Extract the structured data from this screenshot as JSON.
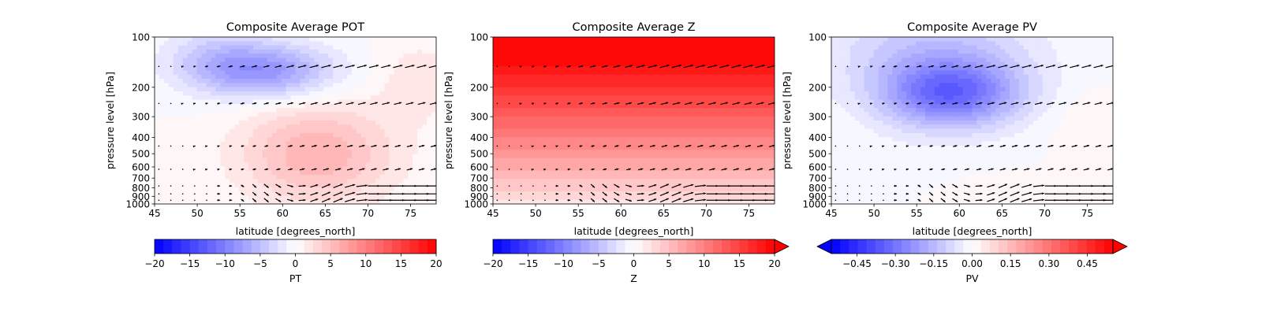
{
  "chart_data": [
    {
      "type": "heatmap",
      "title": "Composite Average POT",
      "xlabel": "latitude [degrees_north]",
      "ylabel": "pressure level [hPa]",
      "xlim": [
        45,
        78
      ],
      "ylim": [
        1000,
        100
      ],
      "yscale": "log",
      "xticks": [
        45,
        50,
        55,
        60,
        65,
        70,
        75
      ],
      "yticks": [
        100,
        200,
        300,
        400,
        500,
        600,
        700,
        800,
        900,
        1000
      ],
      "colorbar": {
        "label": "PT",
        "min": -20,
        "max": 20,
        "ticks": [
          "−20",
          "−15",
          "−10",
          "−5",
          "0",
          "5",
          "10",
          "15",
          "20"
        ],
        "extend": "neither",
        "cmap": "bwr"
      },
      "features": [
        {
          "kind": "min",
          "lat": 58,
          "p": 160,
          "value": -8
        },
        {
          "kind": "max",
          "lat": 64,
          "p": 500,
          "value": 6
        }
      ],
      "overlay": "wind vectors (quiver)",
      "grid": false
    },
    {
      "type": "heatmap",
      "title": "Composite Average Z",
      "xlabel": "latitude [degrees_north]",
      "ylabel": "pressure level [hPa]",
      "xlim": [
        45,
        78
      ],
      "ylim": [
        1000,
        100
      ],
      "yscale": "log",
      "xticks": [
        45,
        50,
        55,
        60,
        65,
        70,
        75
      ],
      "yticks": [
        100,
        200,
        300,
        400,
        500,
        600,
        700,
        800,
        900,
        1000
      ],
      "colorbar": {
        "label": "Z",
        "min": -20,
        "max": 20,
        "ticks": [
          "−20",
          "−15",
          "−10",
          "−5",
          "0",
          "5",
          "10",
          "15",
          "20"
        ],
        "extend": "max",
        "cmap": "bwr"
      },
      "features": [
        {
          "kind": "gradient",
          "description": "values increase with height",
          "value_at_1000": 0,
          "value_at_100": 20
        }
      ],
      "overlay": "wind vectors (quiver)",
      "grid": false
    },
    {
      "type": "heatmap",
      "title": "Composite Average PV",
      "xlabel": "latitude [degrees_north]",
      "ylabel": "pressure level [hPa]",
      "xlim": [
        45,
        78
      ],
      "ylim": [
        1000,
        100
      ],
      "yscale": "log",
      "xticks": [
        45,
        50,
        55,
        60,
        65,
        70,
        75
      ],
      "yticks": [
        100,
        200,
        300,
        400,
        500,
        600,
        700,
        800,
        900,
        1000
      ],
      "colorbar": {
        "label": "PV",
        "min": -0.55,
        "max": 0.55,
        "ticks": [
          "−0.45",
          "−0.30",
          "−0.15",
          "0.00",
          "0.15",
          "0.30",
          "0.45"
        ],
        "extend": "both",
        "cmap": "bwr"
      },
      "features": [
        {
          "kind": "min",
          "lat": 59,
          "p": 220,
          "value": -0.3
        }
      ],
      "overlay": "wind vectors (quiver)",
      "grid": false
    }
  ]
}
